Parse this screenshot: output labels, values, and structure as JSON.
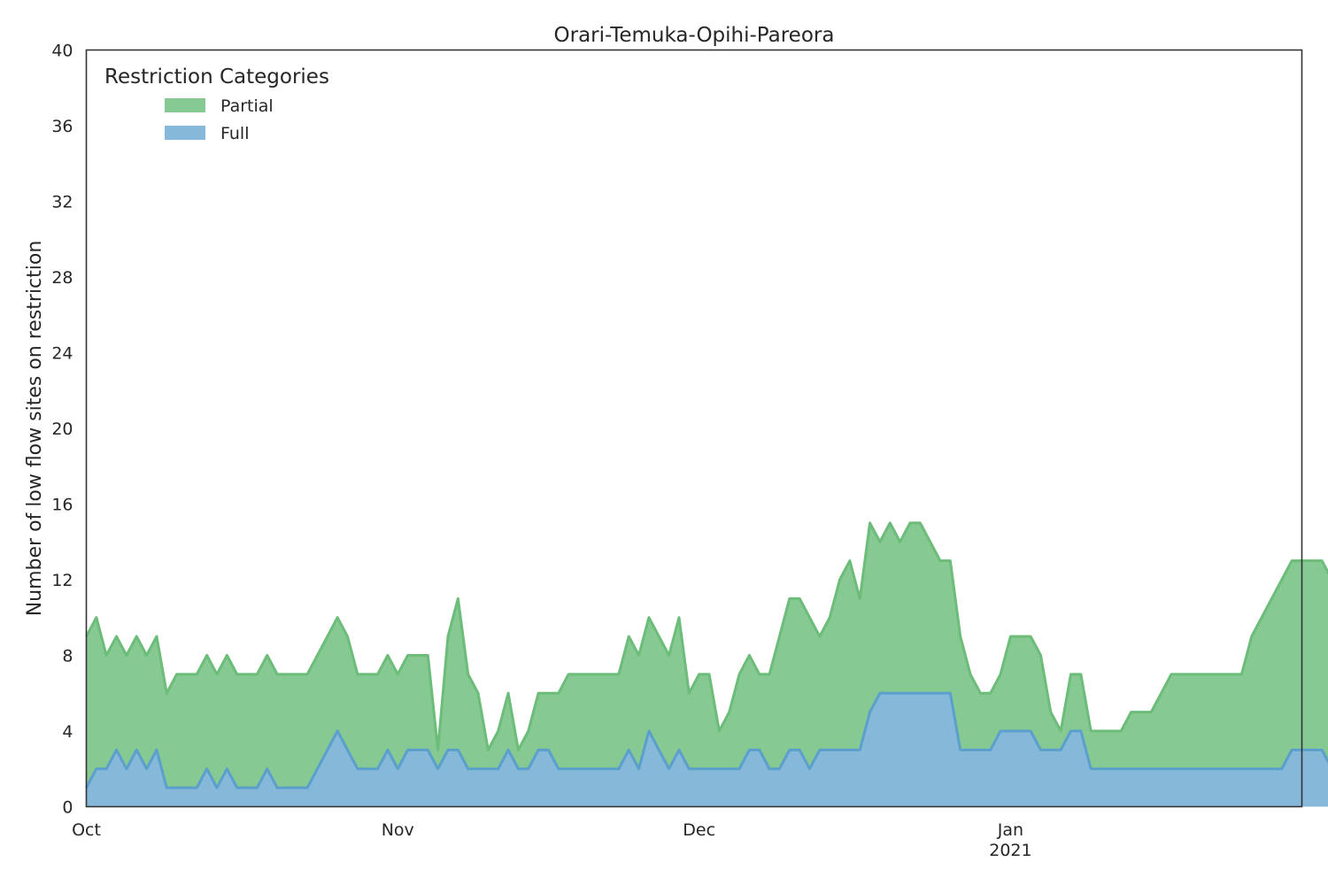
{
  "chart_data": {
    "type": "area",
    "stacked": true,
    "title": "Orari-Temuka-Opihi-Pareora",
    "xlabel": "",
    "ylabel": "Number of low flow sites on restriction",
    "ylim": [
      0,
      40
    ],
    "yticks": [
      0,
      4,
      8,
      12,
      16,
      20,
      24,
      28,
      32,
      36,
      40
    ],
    "xlim": [
      "2020-10-01",
      "2021-01-30"
    ],
    "xticks": [
      {
        "date": "2020-10-01",
        "label": "Oct",
        "sublabel": ""
      },
      {
        "date": "2020-11-01",
        "label": "Nov",
        "sublabel": ""
      },
      {
        "date": "2020-12-01",
        "label": "Dec",
        "sublabel": ""
      },
      {
        "date": "2021-01-01",
        "label": "Jan",
        "sublabel": "2021"
      }
    ],
    "grid": false,
    "legend": {
      "title": "Restriction Categories",
      "placement": "top-left"
    },
    "series": [
      {
        "name": "Full",
        "color": "#86b8da",
        "line_color": "#5b9fcc",
        "values": [
          1,
          2,
          2,
          3,
          2,
          3,
          2,
          3,
          1,
          1,
          1,
          1,
          2,
          1,
          2,
          1,
          1,
          1,
          2,
          1,
          1,
          1,
          1,
          2,
          3,
          4,
          3,
          2,
          2,
          2,
          3,
          2,
          3,
          3,
          3,
          2,
          3,
          3,
          2,
          2,
          2,
          2,
          3,
          2,
          2,
          3,
          3,
          2,
          2,
          2,
          2,
          2,
          2,
          2,
          3,
          2,
          4,
          3,
          2,
          3,
          2,
          2,
          2,
          2,
          2,
          2,
          3,
          3,
          2,
          2,
          3,
          3,
          2,
          3,
          3,
          3,
          3,
          3,
          5,
          6,
          6,
          6,
          6,
          6,
          6,
          6,
          6,
          3,
          3,
          3,
          3,
          4,
          4,
          4,
          4,
          3,
          3,
          3,
          4,
          4,
          2,
          2,
          2,
          2,
          2,
          2,
          2,
          2,
          2,
          2,
          2,
          2,
          2,
          2,
          2,
          2,
          2,
          2,
          2,
          2,
          3,
          3,
          3,
          3,
          2,
          3
        ]
      },
      {
        "name": "Partial",
        "color": "#86c992",
        "line_color": "#6cbc7a",
        "values": [
          8,
          8,
          6,
          6,
          6,
          6,
          6,
          6,
          5,
          6,
          6,
          6,
          6,
          6,
          6,
          6,
          6,
          6,
          6,
          6,
          6,
          6,
          6,
          6,
          6,
          6,
          6,
          5,
          5,
          5,
          5,
          5,
          5,
          5,
          5,
          1,
          6,
          8,
          5,
          4,
          1,
          2,
          3,
          1,
          2,
          3,
          3,
          4,
          5,
          5,
          5,
          5,
          5,
          5,
          6,
          6,
          6,
          6,
          6,
          7,
          4,
          5,
          5,
          2,
          3,
          5,
          5,
          4,
          5,
          7,
          8,
          8,
          8,
          6,
          7,
          9,
          10,
          8,
          10,
          8,
          9,
          8,
          9,
          9,
          8,
          7,
          7,
          6,
          4,
          3,
          3,
          3,
          5,
          5,
          5,
          5,
          2,
          1,
          3,
          3,
          2,
          2,
          2,
          2,
          3,
          3,
          3,
          4,
          5,
          5,
          5,
          5,
          5,
          5,
          5,
          5,
          7,
          8,
          9,
          10,
          10,
          10,
          10,
          10,
          10,
          10
        ]
      }
    ]
  }
}
